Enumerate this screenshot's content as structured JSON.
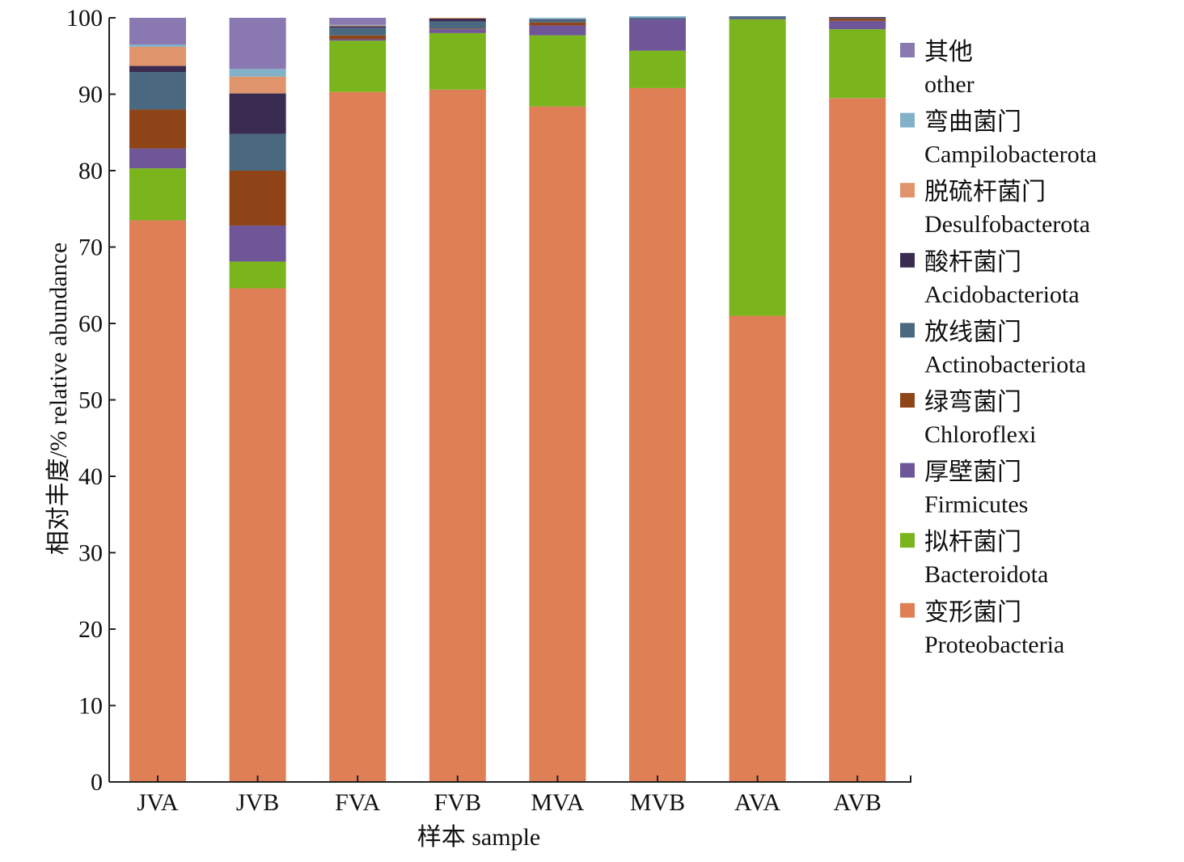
{
  "chart_data": {
    "type": "bar",
    "stacked": true,
    "categories": [
      "JVA",
      "JVB",
      "FVA",
      "FVB",
      "MVA",
      "MVB",
      "AVA",
      "AVB"
    ],
    "xlabel": "样本 sample",
    "ylabel": "相对丰度/% relative abundance",
    "ylim": [
      0,
      100
    ],
    "yticks": [
      0,
      10,
      20,
      30,
      40,
      50,
      60,
      70,
      80,
      90,
      100
    ],
    "grid": false,
    "legend_position": "right",
    "series": [
      {
        "name_cn": "变形菌门",
        "name": "Proteobacteria",
        "color": "#de7f55",
        "values": [
          73.5,
          64.6,
          90.3,
          90.6,
          88.4,
          90.8,
          61.0,
          89.5
        ]
      },
      {
        "name_cn": "拟杆菌门",
        "name": "Bacteroidota",
        "color": "#7ab51d",
        "values": [
          6.8,
          3.5,
          6.7,
          7.4,
          9.3,
          4.9,
          38.8,
          9.0
        ]
      },
      {
        "name_cn": "厚壁菌门",
        "name": "Firmicutes",
        "color": "#6e5699",
        "values": [
          2.6,
          4.7,
          0.2,
          0.5,
          1.3,
          4.1,
          0.1,
          1.1
        ]
      },
      {
        "name_cn": "绿弯菌门",
        "name": "Chloroflexi",
        "color": "#8f4518",
        "values": [
          5.1,
          7.2,
          0.5,
          0.1,
          0.4,
          0.0,
          0.0,
          0.3
        ]
      },
      {
        "name_cn": "放线菌门",
        "name": "Actinobacteriota",
        "color": "#4a6880",
        "values": [
          4.9,
          4.8,
          1.0,
          0.9,
          0.3,
          0.2,
          0.3,
          0.1
        ]
      },
      {
        "name_cn": "酸杆菌门",
        "name": "Acidobacteriota",
        "color": "#3a2c50",
        "values": [
          0.8,
          5.3,
          0.2,
          0.4,
          0.1,
          0.0,
          0.0,
          0.1
        ]
      },
      {
        "name_cn": "脱硫杆菌门",
        "name": "Desulfobacterota",
        "color": "#e0946c",
        "values": [
          2.5,
          2.2,
          0.1,
          0.1,
          0.0,
          0.0,
          0.0,
          0.0
        ]
      },
      {
        "name_cn": "弯曲菌门",
        "name": "Campilobacterota",
        "color": "#82b1c8",
        "values": [
          0.3,
          1.0,
          0.1,
          0.0,
          0.2,
          0.2,
          0.0,
          0.0
        ]
      },
      {
        "name_cn": "其他",
        "name": "other",
        "color": "#8a78b0",
        "values": [
          3.5,
          6.7,
          0.9,
          0.0,
          0.0,
          0.0,
          0.0,
          0.0
        ]
      }
    ]
  }
}
